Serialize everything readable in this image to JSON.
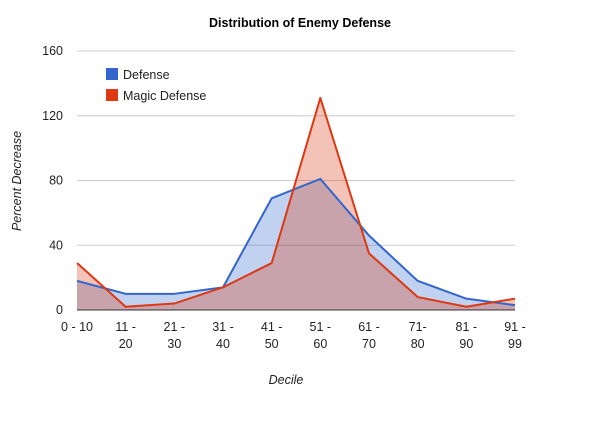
{
  "chart_data": {
    "type": "area",
    "title": "Distribution of Enemy Defense",
    "xlabel": "Decile",
    "ylabel": "Percent Decrease",
    "categories": [
      [
        "0 - 10",
        ""
      ],
      [
        "11 -",
        "20"
      ],
      [
        "21 -",
        "30"
      ],
      [
        "31 -",
        "40"
      ],
      [
        "41 -",
        "50"
      ],
      [
        "51 -",
        "60"
      ],
      [
        "61 -",
        "70"
      ],
      [
        "71-",
        "80"
      ],
      [
        "81 -",
        "90"
      ],
      [
        "91 -",
        "99"
      ]
    ],
    "ylim": [
      0,
      160
    ],
    "yticks": [
      0,
      40,
      80,
      120,
      160
    ],
    "grid": true,
    "legend_position": "top-left",
    "series": [
      {
        "name": "Defense",
        "color": "#3366cc",
        "values": [
          18,
          10,
          10,
          14,
          69,
          81,
          46,
          18,
          7,
          3
        ]
      },
      {
        "name": "Magic Defense",
        "color": "#dc3912",
        "values": [
          29,
          2,
          4,
          14,
          29,
          131,
          35,
          8,
          2,
          7
        ]
      }
    ]
  }
}
